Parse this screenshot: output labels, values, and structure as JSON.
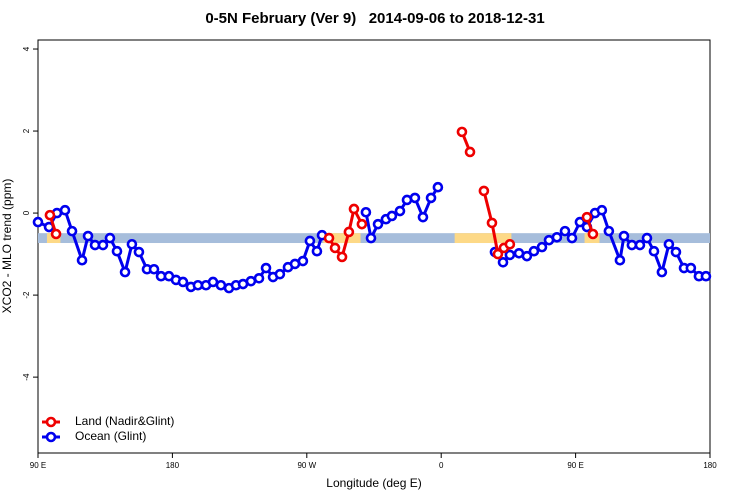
{
  "chart_data": {
    "type": "line",
    "title": "0-5N February (Ver 9)   2014-09-06 to 2018-12-31",
    "x_label": "Longitude (deg E)",
    "y_label": "XCO2 - MLO trend (ppm)",
    "xlim": [
      90,
      540
    ],
    "ylim": [
      -5.85,
      4.22
    ],
    "xticks": [
      {
        "value": 90,
        "label": "90 E"
      },
      {
        "value": 180,
        "label": "180"
      },
      {
        "value": 270,
        "label": "90 W"
      },
      {
        "value": 360,
        "label": "0"
      },
      {
        "value": 450,
        "label": "90 E"
      },
      {
        "value": 540,
        "label": "180"
      }
    ],
    "yticks": [
      -4,
      -2,
      0,
      2,
      4
    ],
    "legend": "bottom-left",
    "band": {
      "y": [
        -0.73,
        -0.49
      ],
      "color": "#a6bddb",
      "land_color": "#fdd987",
      "land_segments": [
        [
          96,
          105
        ],
        [
          281,
          306
        ],
        [
          369,
          407
        ],
        [
          456,
          466
        ]
      ]
    },
    "series": [
      {
        "name": "Ocean (Glint)",
        "color": "#0000ee",
        "x": [
          90,
          97.4,
          102.7,
          108.1,
          112.8,
          119.5,
          123.5,
          128.2,
          133.5,
          138.2,
          142.9,
          148.3,
          152.9,
          157.6,
          163.0,
          167.7,
          172.4,
          177.7,
          182.4,
          187.1,
          192.4,
          197.1,
          202.5,
          207.2,
          212.5,
          217.9,
          222.6,
          227.3,
          232.6,
          238.0,
          242.7,
          247.4,
          252.0,
          257.4,
          262.1,
          267.4,
          272.1,
          276.8,
          280.2,
          null,
          309.6,
          313.0,
          317.7,
          323.0,
          327.0,
          332.4,
          337.1,
          342.4,
          347.8,
          353.2,
          357.8,
          null,
          396.0,
          401.4,
          406.0,
          412.1,
          417.4,
          422.1,
          427.5,
          432.2,
          437.5,
          442.9,
          447.6,
          452.9,
          457.6,
          463.0,
          467.6,
          472.3,
          479.7,
          482.4,
          487.7,
          493.1,
          497.8,
          502.5,
          507.8,
          512.5,
          517.2,
          522.6,
          527.2,
          532.6,
          537.3
        ],
        "values": [
          -0.22,
          -0.34,
          0.0,
          0.07,
          -0.44,
          -1.15,
          -0.56,
          -0.78,
          -0.78,
          -0.61,
          -0.93,
          -1.44,
          -0.76,
          -0.95,
          -1.37,
          -1.37,
          -1.54,
          -1.54,
          -1.63,
          -1.68,
          -1.8,
          -1.76,
          -1.76,
          -1.68,
          -1.76,
          -1.83,
          -1.76,
          -1.73,
          -1.66,
          -1.59,
          -1.34,
          -1.56,
          -1.49,
          -1.32,
          -1.24,
          -1.17,
          -0.68,
          -0.93,
          -0.54,
          null,
          0.02,
          -0.61,
          -0.27,
          -0.15,
          -0.07,
          0.05,
          0.32,
          0.37,
          -0.1,
          0.37,
          0.63,
          null,
          -0.95,
          -1.2,
          -1.02,
          -0.98,
          -1.05,
          -0.93,
          -0.83,
          -0.66,
          -0.59,
          -0.44,
          -0.61,
          -0.22,
          -0.34,
          0.0,
          0.07,
          -0.44,
          -1.15,
          -0.56,
          -0.78,
          -0.78,
          -0.61,
          -0.93,
          -1.44,
          -0.76,
          -0.95,
          -1.34,
          -1.34,
          -1.54,
          -1.54
        ]
      },
      {
        "name": "Land (Nadir&Glint)",
        "color": "#ee0000",
        "x": [
          98.0,
          102.1,
          null,
          284.9,
          288.9,
          293.6,
          298.2,
          301.6,
          306.9,
          null,
          373.9,
          379.3,
          null,
          388.6,
          394.0,
          398.0,
          402.0,
          406.0,
          null,
          457.6,
          461.6
        ],
        "values": [
          -0.05,
          -0.51,
          null,
          -0.61,
          -0.85,
          -1.07,
          -0.46,
          0.1,
          -0.27,
          null,
          1.98,
          1.49,
          null,
          0.54,
          -0.24,
          -1.0,
          -0.85,
          -0.76,
          null,
          -0.1,
          -0.51
        ]
      }
    ]
  }
}
